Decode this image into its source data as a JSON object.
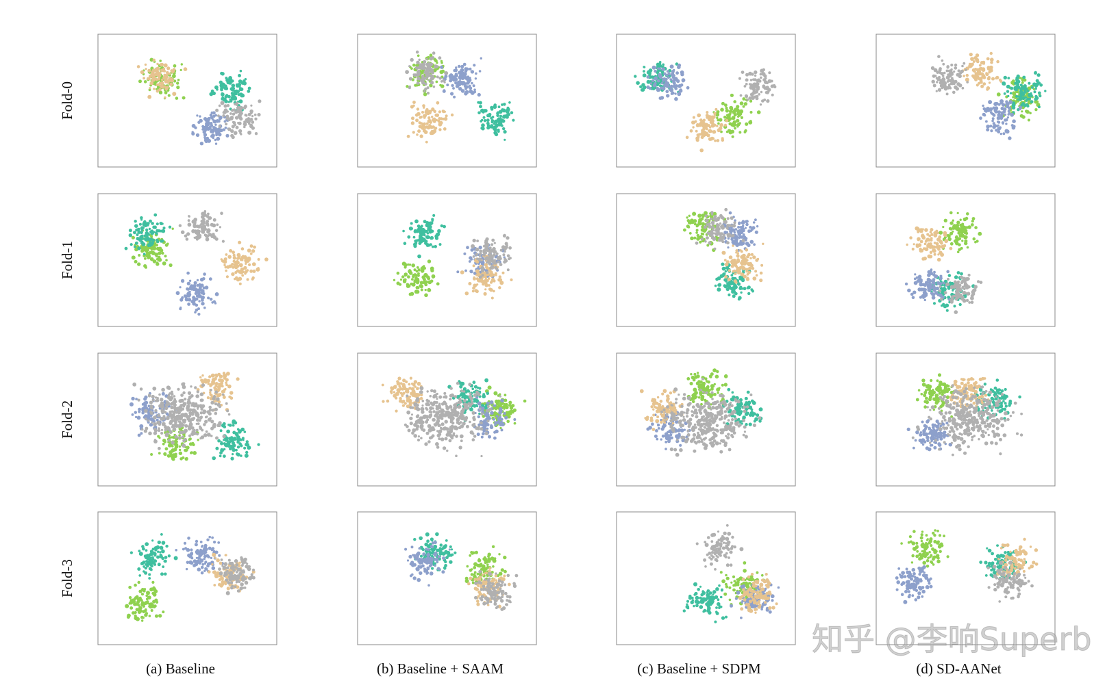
{
  "figure": {
    "rows": [
      "Fold-0",
      "Fold-1",
      "Fold-2",
      "Fold-3"
    ],
    "columns": [
      "(a) Baseline",
      "(b) Baseline + SAAM",
      "(c) Baseline + SDPM",
      "(d) SD-AANet"
    ],
    "watermark": "知乎 @李响Superb"
  }
}
